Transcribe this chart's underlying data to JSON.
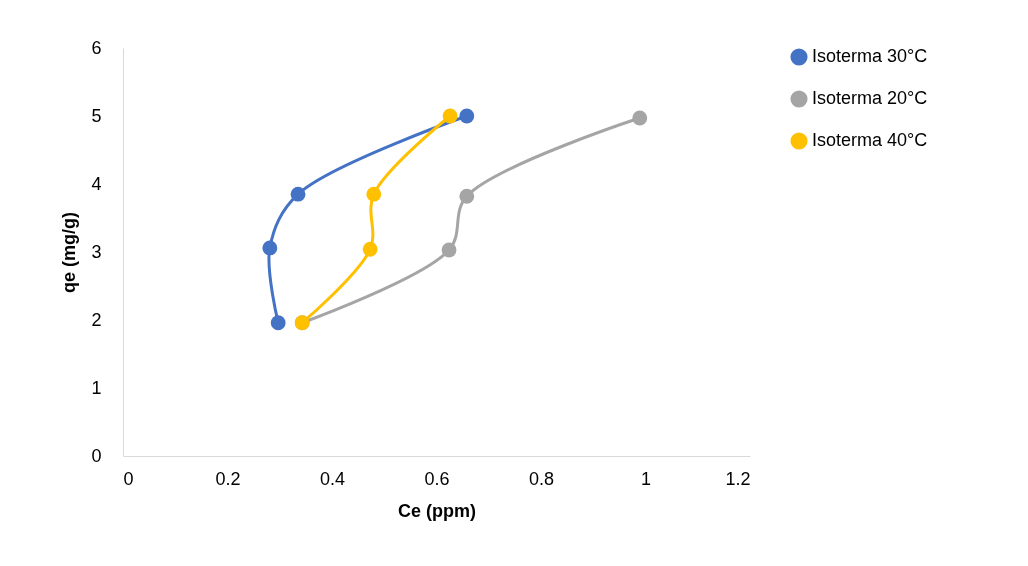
{
  "chart_data": {
    "type": "line",
    "xlabel": "Ce (ppm)",
    "ylabel": "qe (mg/g)",
    "xlim": [
      0,
      1.2
    ],
    "xticks": [
      0,
      0.2,
      0.4,
      0.6,
      0.8,
      1,
      1.2
    ],
    "ylim": [
      0,
      6
    ],
    "yticks": [
      0,
      1,
      2,
      3,
      4,
      5,
      6
    ],
    "grid": false,
    "legend": "right",
    "marker": "circle",
    "line_style": "solid",
    "series": [
      {
        "name": "Isoterma 30°C",
        "color": "#4472c4",
        "x": [
          0.297,
          0.281,
          0.335,
          0.658
        ],
        "values": [
          1.96,
          3.06,
          3.85,
          5.0
        ]
      },
      {
        "name": "Isoterma 20°C",
        "color": "#a5a5a5",
        "x": [
          0.343,
          0.624,
          0.658,
          0.989
        ],
        "values": [
          1.96,
          3.03,
          3.82,
          4.97
        ]
      },
      {
        "name": "Isoterma 40°C",
        "color": "#ffc000",
        "x": [
          0.343,
          0.473,
          0.48,
          0.626
        ],
        "values": [
          1.96,
          3.04,
          3.85,
          5.0
        ]
      }
    ]
  }
}
